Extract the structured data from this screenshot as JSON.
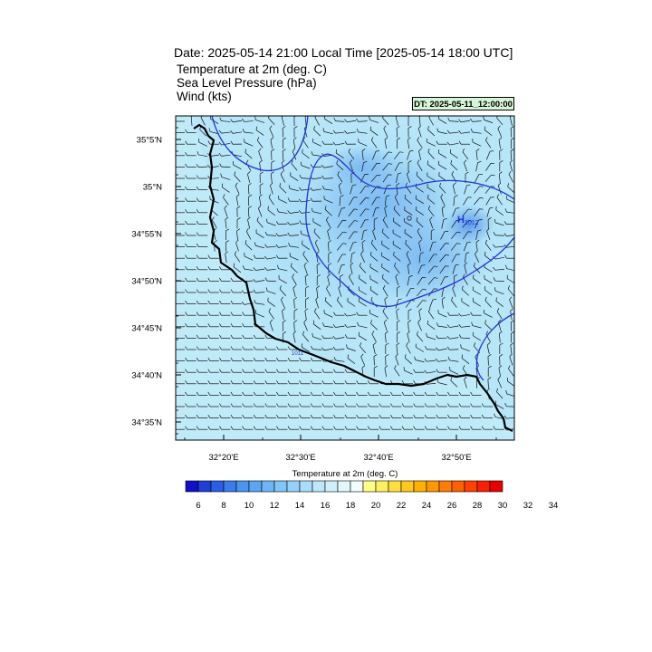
{
  "header": {
    "title": "Date: 2025-05-14  21:00 Local Time [2025-05-14  18:00 UTC]",
    "fields": [
      "Temperature at 2m   (deg. C)",
      "Sea Level Pressure   (hPa)",
      "Wind   (kts)"
    ],
    "dt_badge": "DT: 2025-05-11_12:00:00"
  },
  "map": {
    "lat_labels": [
      "35°5'N",
      "35°N",
      "34°55'N",
      "34°50'N",
      "34°45'N",
      "34°40'N",
      "34°35'N"
    ],
    "lon_labels": [
      "32°20'E",
      "32°30'E",
      "32°40'E",
      "32°50'E"
    ],
    "high_marker": "H",
    "high_value": "1012",
    "isobar_label": "1011"
  },
  "colorbar": {
    "title": "Temperature at 2m  (deg. C)",
    "labels": [
      "6",
      "8",
      "10",
      "12",
      "14",
      "16",
      "18",
      "20",
      "22",
      "24",
      "26",
      "28",
      "30",
      "32",
      "34"
    ],
    "colors": [
      "#1010c8",
      "#1e3ed8",
      "#2a5ee6",
      "#3a7cee",
      "#4a94f2",
      "#5aa6f4",
      "#6cb6f6",
      "#80c6f8",
      "#94d2f9",
      "#a8def9",
      "#bce8fa",
      "#cff0fb",
      "#e2f7fc",
      "#f2fcfd",
      "#ffff88",
      "#fff060",
      "#ffde40",
      "#ffc820",
      "#ffb000",
      "#ff9800",
      "#ff7c00",
      "#ff6000",
      "#ff4000",
      "#f82000",
      "#e80000"
    ]
  }
}
